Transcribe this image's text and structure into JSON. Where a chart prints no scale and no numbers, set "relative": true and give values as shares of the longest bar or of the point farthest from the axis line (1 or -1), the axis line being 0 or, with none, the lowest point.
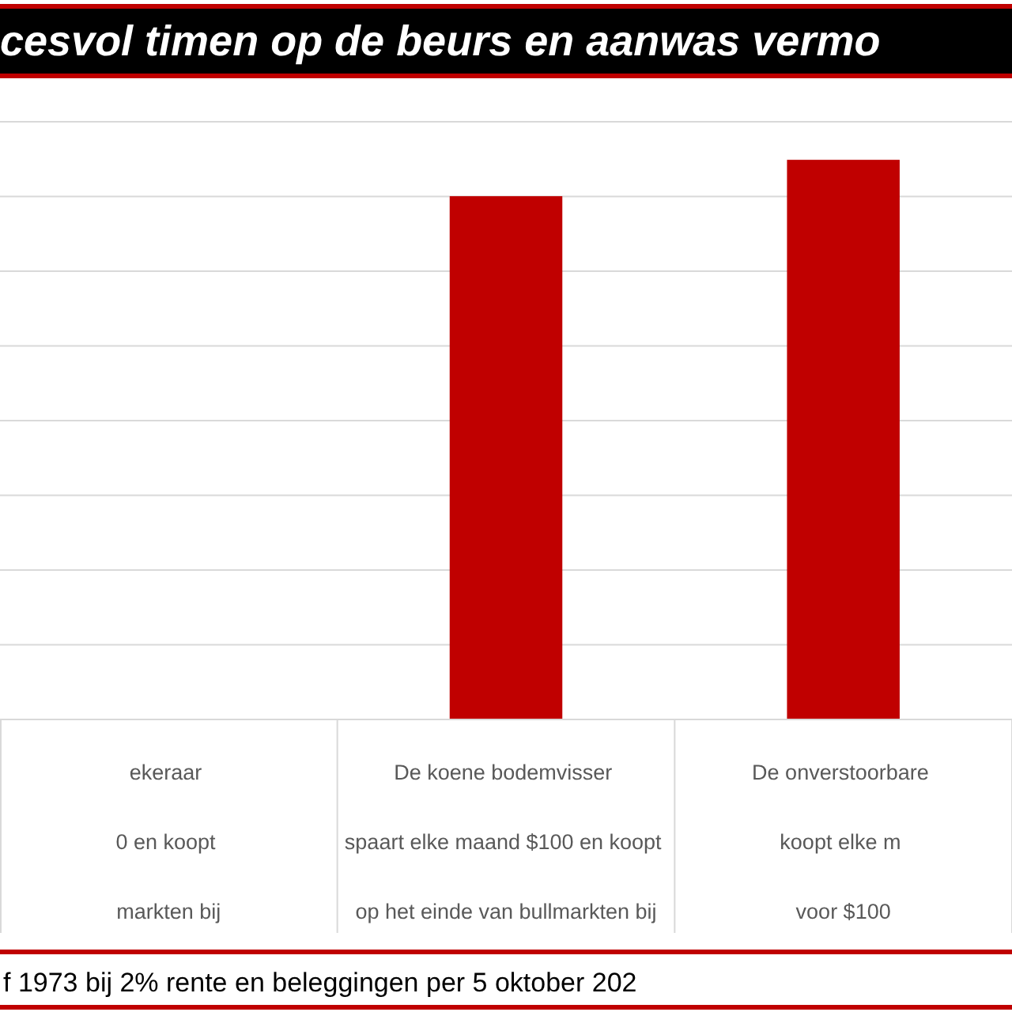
{
  "chart_data": {
    "type": "bar",
    "title": "cesvol timen op de beurs en aanwas vermo",
    "categories": [
      "De koene bodemvisser\nspaart elke maand $100 en koopt\nop het einde van bullmarkten bij",
      "De onverstoorbare\nkoopt elke m\nvoor $100"
    ],
    "values": [
      0.935,
      1
    ],
    "color": "#c00000",
    "relative": true,
    "grid": "y",
    "annotations": [
      "ekeraar\n0 en koopt\nmarkten bij",
      "f 1973 bij 2% rente en beleggingen per 5 oktober 202"
    ]
  }
}
